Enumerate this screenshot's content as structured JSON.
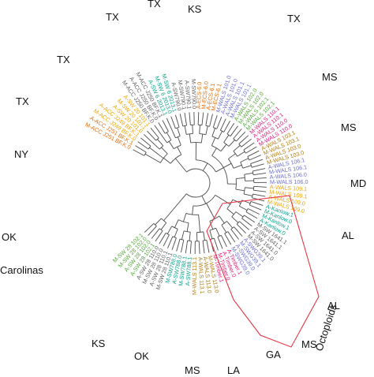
{
  "figure": {
    "colors": {
      "orange": "#e46c0a",
      "gold": "#f0a500",
      "gray": "#5f5f5f",
      "teal": "#0fa38a",
      "green": "#56a83a",
      "magenta": "#e0207d",
      "purple": "#6c6fd0",
      "brown": "#b07c12",
      "olive": "#7aa02a",
      "red": "#e83545",
      "text": "#111111"
    },
    "leaves": [
      {
        "label": "M-ACC J251 BF.K.0",
        "color": "orange"
      },
      {
        "label": "A-ACC J251 BF.K.1",
        "color": "orange"
      },
      {
        "label": "M-ACC J249 BF.K.0",
        "color": "gold"
      },
      {
        "label": "A-ACC J249 BF.K.1",
        "color": "gold"
      },
      {
        "label": "A-SW 20 101.0",
        "color": "gold"
      },
      {
        "label": "M-SW 20 101.1",
        "color": "gold"
      },
      {
        "label": "A-SW 20 101.1",
        "color": "gold"
      },
      {
        "label": "M-ACC J250 BF.K.0",
        "color": "gray"
      },
      {
        "label": "A-ACC J250 BF.K.0",
        "color": "gray"
      },
      {
        "label": "M-ACC J250 BF.K.1",
        "color": "gray"
      },
      {
        "label": "A-SW 6 2013.1",
        "color": "teal"
      },
      {
        "label": "M-SW 6 2013.0",
        "color": "teal"
      },
      {
        "label": "M-SW 6 2013.1",
        "color": "teal"
      },
      {
        "label": "A-SW790.0",
        "color": "gray"
      },
      {
        "label": "M-SW790.1",
        "color": "gray"
      },
      {
        "label": "A-SW790.1",
        "color": "gray"
      },
      {
        "label": "M-SW790.0",
        "color": "gray"
      },
      {
        "label": "A-ECS-6.0",
        "color": "orange"
      },
      {
        "label": "M-ECS-6.0",
        "color": "orange"
      },
      {
        "label": "A-ECS-6.1",
        "color": "orange"
      },
      {
        "label": "M-ECS-6.1",
        "color": "orange"
      },
      {
        "label": "M-WALS 101.0",
        "color": "purple"
      },
      {
        "label": "A-WALS 101.0",
        "color": "purple"
      },
      {
        "label": "A-WALS 101.1",
        "color": "purple"
      },
      {
        "label": "M-WALS 101.1",
        "color": "purple"
      },
      {
        "label": "A-WALS 102.0",
        "color": "green"
      },
      {
        "label": "M-WALS 102.0",
        "color": "green"
      },
      {
        "label": "A-WALS 102.1",
        "color": "green"
      },
      {
        "label": "M-WALS 102.1",
        "color": "green"
      },
      {
        "label": "M-WALS 110.1",
        "color": "magenta"
      },
      {
        "label": "A-WALS 110.1",
        "color": "magenta"
      },
      {
        "label": "A-WALS 110.0",
        "color": "magenta"
      },
      {
        "label": "M-WALS 110.0",
        "color": "magenta"
      },
      {
        "label": "A-WALS 103.1",
        "color": "brown"
      },
      {
        "label": "M-WALS 103.1",
        "color": "brown"
      },
      {
        "label": "A-WALS 103.0",
        "color": "brown"
      },
      {
        "label": "M-WALS 103.0",
        "color": "brown"
      },
      {
        "label": "A-WALS 106.1",
        "color": "purple"
      },
      {
        "label": "M-WALS 106.1",
        "color": "purple"
      },
      {
        "label": "A-WALS 106.0",
        "color": "purple"
      },
      {
        "label": "M-WALS 106.0",
        "color": "purple"
      },
      {
        "label": "A-WALS 109.1",
        "color": "gold"
      },
      {
        "label": "M-WALS 109.1",
        "color": "gold"
      },
      {
        "label": "A-WALS 109.0",
        "color": "gold"
      },
      {
        "label": "M-WALS 109.0",
        "color": "gold"
      },
      {
        "label": "A-Kanlow.1",
        "color": "teal"
      },
      {
        "label": "M-Kanlow.0",
        "color": "teal"
      },
      {
        "label": "M-Kanlow.1",
        "color": "teal"
      },
      {
        "label": "A-Kanlow.0",
        "color": "teal"
      },
      {
        "label": "M-SW 1641.1",
        "color": "gray"
      },
      {
        "label": "A-SW 1641.1",
        "color": "gray"
      },
      {
        "label": "A-SW 1641.0",
        "color": "gray"
      },
      {
        "label": "M-SW 1641.0",
        "color": "gray"
      },
      {
        "label": "A-SWG39.1",
        "color": "purple"
      },
      {
        "label": "M-SWG39.1",
        "color": "purple"
      },
      {
        "label": "A-SWG39.0",
        "color": "purple"
      },
      {
        "label": "M-SWG39.0",
        "color": "purple"
      },
      {
        "label": "A-Timber.1",
        "color": "magenta"
      },
      {
        "label": "A-Timber.0",
        "color": "magenta"
      },
      {
        "label": "M-Timber.0",
        "color": "magenta"
      },
      {
        "label": "M-Timber.1",
        "color": "magenta"
      },
      {
        "label": "M-WALS 113.0",
        "color": "brown"
      },
      {
        "label": "A-WALS 113.0",
        "color": "brown"
      },
      {
        "label": "A-WALS 113.1",
        "color": "brown"
      },
      {
        "label": "M-WALS 113.1",
        "color": "brown"
      },
      {
        "label": "A-SW788.1",
        "color": "teal"
      },
      {
        "label": "M-SW788.1",
        "color": "teal"
      },
      {
        "label": "A-SW788.0",
        "color": "teal"
      },
      {
        "label": "M-SW788.0",
        "color": "teal"
      },
      {
        "label": "M-SW 28 110.1",
        "color": "gray"
      },
      {
        "label": "A-SW 28 110.1",
        "color": "gray"
      },
      {
        "label": "M-SW 28 110.0",
        "color": "gray"
      },
      {
        "label": "A-SW 28 110.0",
        "color": "gray"
      },
      {
        "label": "A-SW 28 102.1",
        "color": "green"
      },
      {
        "label": "A-SW 28 102.0",
        "color": "green"
      },
      {
        "label": "M-SW 28 102.0",
        "color": "green"
      },
      {
        "label": "M-SW 28 102.1",
        "color": "green"
      }
    ],
    "regions": [
      "TX",
      "TX",
      "KS",
      "TX",
      "MS",
      "MS",
      "MD",
      "AL",
      "AL",
      "MS",
      "GA",
      "LA",
      "MS",
      "OK",
      "KS",
      "Carolinas",
      "OK",
      "NY",
      "TX",
      "TX"
    ],
    "octoploids_label": "Octoploids"
  }
}
